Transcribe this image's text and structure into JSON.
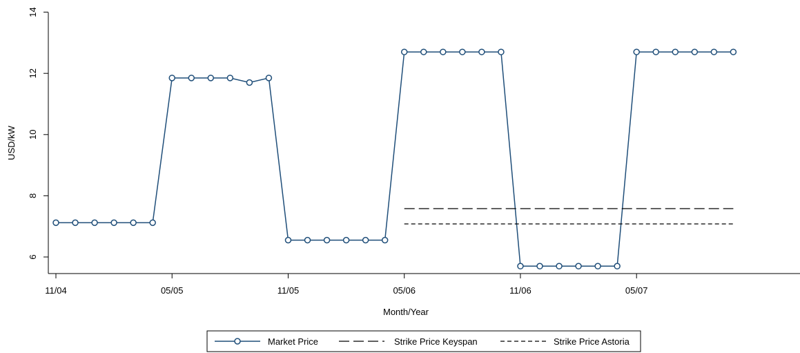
{
  "chart_data": {
    "type": "line",
    "xlabel": "Month/Year",
    "ylabel": "USD/kW",
    "ylim": [
      5.5,
      14
    ],
    "yticks": [
      6,
      8,
      10,
      12,
      14
    ],
    "x_ticks": [
      {
        "index": 0,
        "label": "11/04"
      },
      {
        "index": 6,
        "label": "05/05"
      },
      {
        "index": 12,
        "label": "11/05"
      },
      {
        "index": 18,
        "label": "05/06"
      },
      {
        "index": 24,
        "label": "11/06"
      },
      {
        "index": 30,
        "label": "05/07"
      }
    ],
    "x_range": [
      0,
      37
    ],
    "grid": false,
    "legend_position": "bottom-center",
    "series": [
      {
        "name": "Market Price",
        "style": "line-circles",
        "color": "#1f4e79",
        "x": [
          0,
          1,
          2,
          3,
          4,
          5,
          6,
          7,
          8,
          9,
          10,
          11,
          12,
          13,
          14,
          15,
          16,
          17,
          18,
          19,
          20,
          21,
          22,
          23,
          24,
          25,
          26,
          27,
          28,
          29,
          30,
          31,
          32,
          33,
          34,
          35
        ],
        "values": [
          7.12,
          7.12,
          7.12,
          7.12,
          7.12,
          7.12,
          11.85,
          11.85,
          11.85,
          11.85,
          11.7,
          11.85,
          6.55,
          6.55,
          6.55,
          6.55,
          6.55,
          6.55,
          12.7,
          12.7,
          12.7,
          12.7,
          12.7,
          12.7,
          5.7,
          5.7,
          5.7,
          5.7,
          5.7,
          5.7,
          12.7,
          12.7,
          12.7,
          12.7,
          12.7,
          12.7
        ]
      },
      {
        "name": "Strike Price Keyspan",
        "style": "long-dash",
        "color": "#000000",
        "x": [
          18,
          35
        ],
        "values": [
          7.58,
          7.58
        ]
      },
      {
        "name": "Strike Price Astoria",
        "style": "short-dash",
        "color": "#000000",
        "x": [
          18,
          35
        ],
        "values": [
          7.08,
          7.08
        ]
      }
    ]
  }
}
